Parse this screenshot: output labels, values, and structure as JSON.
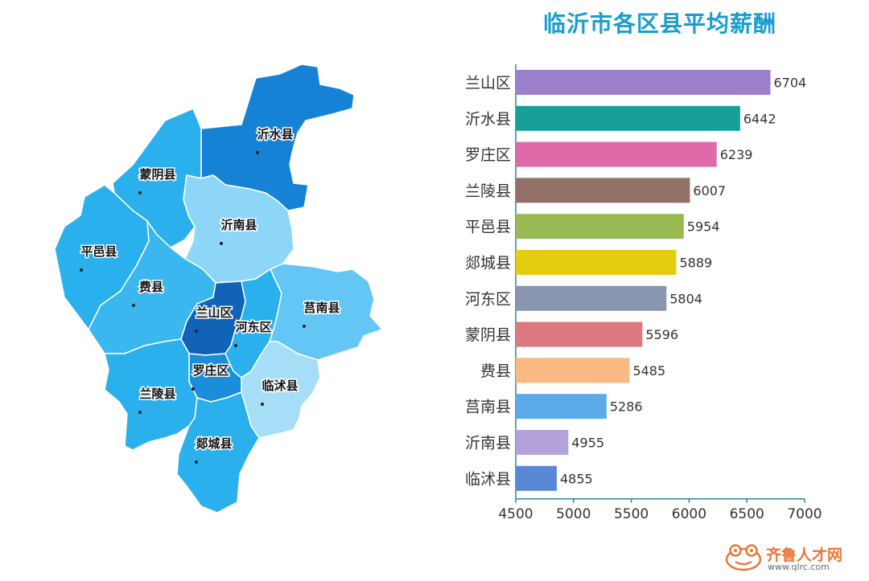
{
  "chart_data": {
    "type": "bar",
    "orientation": "horizontal",
    "title": "临沂市各区县平均薪酬",
    "categories": [
      "兰山区",
      "沂水县",
      "罗庄区",
      "兰陵县",
      "平邑县",
      "郯城县",
      "河东区",
      "蒙阴县",
      "费县",
      "莒南县",
      "沂南县",
      "临沭县"
    ],
    "values": [
      6704,
      6442,
      6239,
      6007,
      5954,
      5889,
      5804,
      5596,
      5485,
      5286,
      4955,
      4855
    ],
    "colors": [
      "#9b7fcc",
      "#17a09a",
      "#df6aa9",
      "#937068",
      "#98b954",
      "#e2cd0e",
      "#8a96b0",
      "#db7a80",
      "#fbb983",
      "#5aaae8",
      "#b5a1d9",
      "#5b88d6"
    ],
    "xlim": [
      4500,
      7000
    ],
    "xticks": [
      4500,
      5000,
      5500,
      6000,
      6500,
      7000
    ],
    "xlabel": "",
    "ylabel": "",
    "grid": false,
    "legend": "none"
  },
  "map": {
    "regions": [
      {
        "id": "yishui",
        "name": "沂水县",
        "color": "#1582d6"
      },
      {
        "id": "mengyin",
        "name": "蒙阴县",
        "color": "#2ab0ec"
      },
      {
        "id": "yinan",
        "name": "沂南县",
        "color": "#8ed6f8"
      },
      {
        "id": "pingyi",
        "name": "平邑县",
        "color": "#2ab0ec"
      },
      {
        "id": "feixian",
        "name": "费县",
        "color": "#3ab7ee"
      },
      {
        "id": "lanshan",
        "name": "兰山区",
        "color": "#1163b8"
      },
      {
        "id": "hedong",
        "name": "河东区",
        "color": "#2ab0ec"
      },
      {
        "id": "junan",
        "name": "莒南县",
        "color": "#63c6f4"
      },
      {
        "id": "linshu",
        "name": "临沭县",
        "color": "#a6def8"
      },
      {
        "id": "luozhuang",
        "name": "罗庄区",
        "color": "#1b8edb"
      },
      {
        "id": "lanling",
        "name": "兰陵县",
        "color": "#2ab0ec"
      },
      {
        "id": "tancheng",
        "name": "郯城县",
        "color": "#2ab0ec"
      }
    ]
  },
  "watermark": {
    "name": "齐鲁人才网",
    "url": "www.qlrc.com"
  }
}
